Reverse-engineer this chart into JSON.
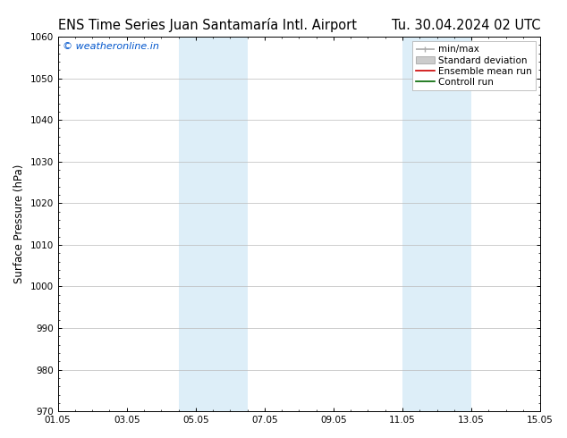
{
  "title_left": "ENS Time Series Juan Santamaría Intl. Airport",
  "title_right": "Tu. 30.04.2024 02 UTC",
  "ylabel": "Surface Pressure (hPa)",
  "ylim": [
    970,
    1060
  ],
  "yticks": [
    970,
    980,
    990,
    1000,
    1010,
    1020,
    1030,
    1040,
    1050,
    1060
  ],
  "xtick_labels": [
    "01.05",
    "03.05",
    "05.05",
    "07.05",
    "09.05",
    "11.05",
    "13.05",
    "15.05"
  ],
  "xtick_positions": [
    0,
    2,
    4,
    6,
    8,
    10,
    12,
    14
  ],
  "xlim": [
    0,
    14
  ],
  "shaded_bands": [
    {
      "x_start": 3.5,
      "x_end": 5.5,
      "color": "#ddeef8"
    },
    {
      "x_start": 10.0,
      "x_end": 12.0,
      "color": "#ddeef8"
    }
  ],
  "background_color": "#ffffff",
  "plot_bg_color": "#ffffff",
  "watermark_text": "© weatheronline.in",
  "watermark_color": "#0055cc",
  "legend_items": [
    {
      "label": "min/max",
      "color": "#aaaaaa",
      "style": "errorbar"
    },
    {
      "label": "Standard deviation",
      "color": "#cccccc",
      "style": "fill"
    },
    {
      "label": "Ensemble mean run",
      "color": "#cc0000",
      "style": "line"
    },
    {
      "label": "Controll run",
      "color": "#006600",
      "style": "line"
    }
  ],
  "grid_color": "#bbbbbb",
  "font_size_title": 10.5,
  "font_size_axis": 8.5,
  "font_size_ticks": 7.5,
  "font_size_legend": 7.5,
  "font_size_watermark": 8
}
